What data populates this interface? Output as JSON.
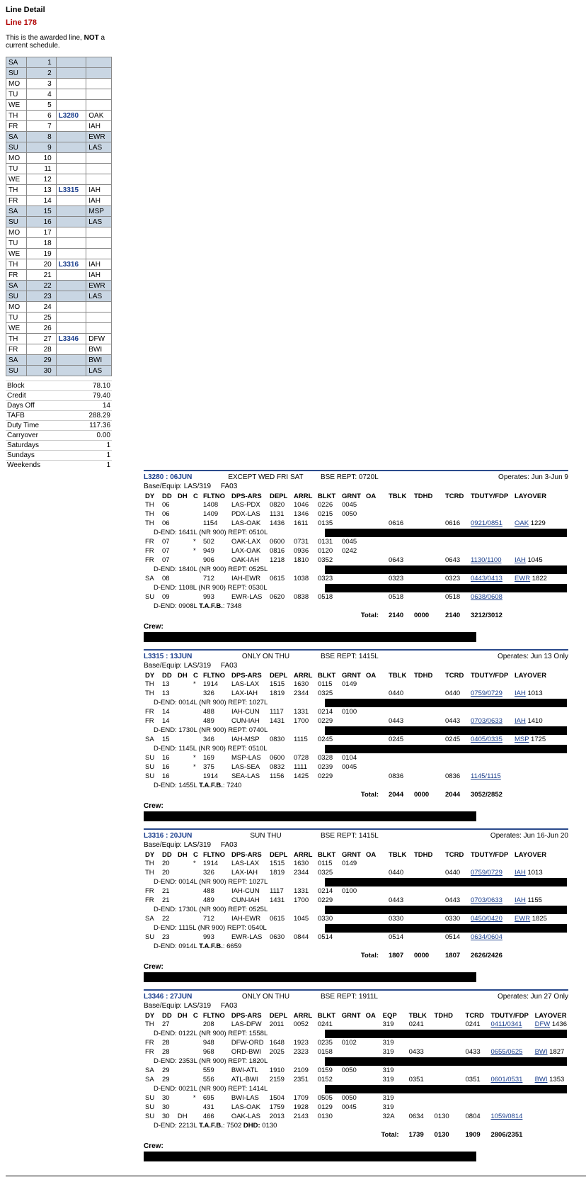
{
  "leftPanel": {
    "heading": "Line Detail",
    "lineNumber": "Line 178",
    "note": "This is the awarded line, NOT a current schedule.",
    "calendar": [
      {
        "dy": "SA",
        "n": "1",
        "ln": "",
        "arpt": "",
        "wk": true
      },
      {
        "dy": "SU",
        "n": "2",
        "ln": "",
        "arpt": "",
        "wk": true
      },
      {
        "dy": "MO",
        "n": "3",
        "ln": "",
        "arpt": ""
      },
      {
        "dy": "TU",
        "n": "4",
        "ln": "",
        "arpt": ""
      },
      {
        "dy": "WE",
        "n": "5",
        "ln": "",
        "arpt": ""
      },
      {
        "dy": "TH",
        "n": "6",
        "ln": "L3280",
        "arpt": "OAK"
      },
      {
        "dy": "FR",
        "n": "7",
        "ln": "",
        "arpt": "IAH"
      },
      {
        "dy": "SA",
        "n": "8",
        "ln": "",
        "arpt": "EWR",
        "wk": true
      },
      {
        "dy": "SU",
        "n": "9",
        "ln": "",
        "arpt": "LAS",
        "wk": true
      },
      {
        "dy": "MO",
        "n": "10",
        "ln": "",
        "arpt": ""
      },
      {
        "dy": "TU",
        "n": "11",
        "ln": "",
        "arpt": ""
      },
      {
        "dy": "WE",
        "n": "12",
        "ln": "",
        "arpt": ""
      },
      {
        "dy": "TH",
        "n": "13",
        "ln": "L3315",
        "arpt": "IAH"
      },
      {
        "dy": "FR",
        "n": "14",
        "ln": "",
        "arpt": "IAH"
      },
      {
        "dy": "SA",
        "n": "15",
        "ln": "",
        "arpt": "MSP",
        "wk": true
      },
      {
        "dy": "SU",
        "n": "16",
        "ln": "",
        "arpt": "LAS",
        "wk": true
      },
      {
        "dy": "MO",
        "n": "17",
        "ln": "",
        "arpt": ""
      },
      {
        "dy": "TU",
        "n": "18",
        "ln": "",
        "arpt": ""
      },
      {
        "dy": "WE",
        "n": "19",
        "ln": "",
        "arpt": ""
      },
      {
        "dy": "TH",
        "n": "20",
        "ln": "L3316",
        "arpt": "IAH"
      },
      {
        "dy": "FR",
        "n": "21",
        "ln": "",
        "arpt": "IAH"
      },
      {
        "dy": "SA",
        "n": "22",
        "ln": "",
        "arpt": "EWR",
        "wk": true
      },
      {
        "dy": "SU",
        "n": "23",
        "ln": "",
        "arpt": "LAS",
        "wk": true
      },
      {
        "dy": "MO",
        "n": "24",
        "ln": "",
        "arpt": ""
      },
      {
        "dy": "TU",
        "n": "25",
        "ln": "",
        "arpt": ""
      },
      {
        "dy": "WE",
        "n": "26",
        "ln": "",
        "arpt": ""
      },
      {
        "dy": "TH",
        "n": "27",
        "ln": "L3346",
        "arpt": "DFW"
      },
      {
        "dy": "FR",
        "n": "28",
        "ln": "",
        "arpt": "BWI"
      },
      {
        "dy": "SA",
        "n": "29",
        "ln": "",
        "arpt": "BWI",
        "wk": true
      },
      {
        "dy": "SU",
        "n": "30",
        "ln": "",
        "arpt": "LAS",
        "wk": true
      }
    ],
    "stats": [
      {
        "k": "Block",
        "v": "78.10"
      },
      {
        "k": "Credit",
        "v": "79.40"
      },
      {
        "k": "Days Off",
        "v": "14"
      },
      {
        "k": "TAFB",
        "v": "288.29"
      },
      {
        "k": "Duty Time",
        "v": "117.36"
      },
      {
        "k": "Carryover",
        "v": "0.00"
      },
      {
        "k": "Saturdays",
        "v": "1"
      },
      {
        "k": "Sundays",
        "v": "1"
      },
      {
        "k": "Weekends",
        "v": "1"
      }
    ]
  },
  "colHeaders": {
    "dy": "DY",
    "dd": "DD",
    "dh": "DH",
    "c": "C",
    "flt": "FLTNO",
    "da": "DPS-ARS",
    "dep": "DEPL",
    "arr": "ARRL",
    "blkt": "BLKT",
    "grnt": "GRNT",
    "oa": "OA",
    "eqp": "EQP",
    "tblk": "TBLK",
    "tdhd": "TDHD",
    "tcrd": "TCRD",
    "tduty": "TDUTY/FDP",
    "lay": "LAYOVER"
  },
  "labels": {
    "crew": "Crew:",
    "total": "Total:",
    "baseEquip": "Base/Equip: LAS/319",
    "fa": "FA03"
  },
  "pairings": [
    {
      "id": "L3280 : 06JUN",
      "op": "EXCEPT WED FRI SAT",
      "bse": "BSE REPT: 0720L",
      "dates": "Operates: Jun 3-Jun 9",
      "hasEqp": false,
      "rows": [
        {
          "t": "leg",
          "dy": "TH",
          "dd": "06",
          "c": "",
          "flt": "1408",
          "da": "LAS-PDX",
          "dep": "0820",
          "arr": "1046",
          "blkt": "0226",
          "grnt": "0045"
        },
        {
          "t": "leg",
          "dy": "TH",
          "dd": "06",
          "c": "",
          "flt": "1409",
          "da": "PDX-LAS",
          "dep": "1131",
          "arr": "1346",
          "blkt": "0215",
          "grnt": "0050"
        },
        {
          "t": "leg",
          "dy": "TH",
          "dd": "06",
          "c": "",
          "flt": "1154",
          "da": "LAS-OAK",
          "dep": "1436",
          "arr": "1611",
          "blkt": "0135",
          "tblk": "0616",
          "tcrd": "0616",
          "tduty": "0921/0851",
          "layA": "OAK",
          "layT": "1229"
        },
        {
          "t": "dend",
          "txt": "D-END: 1641L (NR 900) REPT: 0510L",
          "bar": true
        },
        {
          "t": "leg",
          "dy": "FR",
          "dd": "07",
          "c": "*",
          "flt": "502",
          "da": "OAK-LAX",
          "dep": "0600",
          "arr": "0731",
          "blkt": "0131",
          "grnt": "0045"
        },
        {
          "t": "leg",
          "dy": "FR",
          "dd": "07",
          "c": "*",
          "flt": "949",
          "da": "LAX-OAK",
          "dep": "0816",
          "arr": "0936",
          "blkt": "0120",
          "grnt": "0242"
        },
        {
          "t": "leg",
          "dy": "FR",
          "dd": "07",
          "c": "",
          "flt": "906",
          "da": "OAK-IAH",
          "dep": "1218",
          "arr": "1810",
          "blkt": "0352",
          "tblk": "0643",
          "tcrd": "0643",
          "tduty": "1130/1100",
          "layA": "IAH",
          "layT": "1045"
        },
        {
          "t": "dend",
          "txt": "D-END: 1840L (NR 900) REPT: 0525L",
          "bar": true
        },
        {
          "t": "leg",
          "dy": "SA",
          "dd": "08",
          "c": "",
          "flt": "712",
          "da": "IAH-EWR",
          "dep": "0615",
          "arr": "1038",
          "blkt": "0323",
          "tblk": "0323",
          "tcrd": "0323",
          "tduty": "0443/0413",
          "layA": "EWR",
          "layT": "1822"
        },
        {
          "t": "dend",
          "txt": "D-END: 1108L (NR 900) REPT: 0530L",
          "bar": true
        },
        {
          "t": "leg",
          "dy": "SU",
          "dd": "09",
          "c": "",
          "flt": "993",
          "da": "EWR-LAS",
          "dep": "0620",
          "arr": "0838",
          "blkt": "0518",
          "tblk": "0518",
          "tcrd": "0518",
          "tduty": "0638/0608"
        },
        {
          "t": "dend",
          "txt": "D-END: 0908L   T.A.F.B.: 7348",
          "bold": true
        },
        {
          "t": "total",
          "tblk": "2140",
          "tdhd": "0000",
          "tcrd": "2140",
          "tduty": "3212/3012"
        }
      ]
    },
    {
      "id": "L3315 : 13JUN",
      "op": "ONLY ON THU",
      "bse": "BSE REPT: 1415L",
      "dates": "Operates: Jun 13 Only",
      "hasEqp": false,
      "rows": [
        {
          "t": "leg",
          "dy": "TH",
          "dd": "13",
          "c": "*",
          "flt": "1914",
          "da": "LAS-LAX",
          "dep": "1515",
          "arr": "1630",
          "blkt": "0115",
          "grnt": "0149"
        },
        {
          "t": "leg",
          "dy": "TH",
          "dd": "13",
          "c": "",
          "flt": "326",
          "da": "LAX-IAH",
          "dep": "1819",
          "arr": "2344",
          "blkt": "0325",
          "tblk": "0440",
          "tcrd": "0440",
          "tduty": "0759/0729",
          "layA": "IAH",
          "layT": "1013"
        },
        {
          "t": "dend",
          "txt": "D-END: 0014L (NR 900) REPT: 1027L",
          "bar": true
        },
        {
          "t": "leg",
          "dy": "FR",
          "dd": "14",
          "c": "",
          "flt": "488",
          "da": "IAH-CUN",
          "dep": "1117",
          "arr": "1331",
          "blkt": "0214",
          "grnt": "0100"
        },
        {
          "t": "leg",
          "dy": "FR",
          "dd": "14",
          "c": "",
          "flt": "489",
          "da": "CUN-IAH",
          "dep": "1431",
          "arr": "1700",
          "blkt": "0229",
          "tblk": "0443",
          "tcrd": "0443",
          "tduty": "0703/0633",
          "layA": "IAH",
          "layT": "1410"
        },
        {
          "t": "dend",
          "txt": "D-END: 1730L (NR 900) REPT: 0740L",
          "bar": true
        },
        {
          "t": "leg",
          "dy": "SA",
          "dd": "15",
          "c": "",
          "flt": "346",
          "da": "IAH-MSP",
          "dep": "0830",
          "arr": "1115",
          "blkt": "0245",
          "tblk": "0245",
          "tcrd": "0245",
          "tduty": "0405/0335",
          "layA": "MSP",
          "layT": "1725"
        },
        {
          "t": "dend",
          "txt": "D-END: 1145L (NR 900) REPT: 0510L",
          "bar": true
        },
        {
          "t": "leg",
          "dy": "SU",
          "dd": "16",
          "c": "*",
          "flt": "169",
          "da": "MSP-LAS",
          "dep": "0600",
          "arr": "0728",
          "blkt": "0328",
          "grnt": "0104"
        },
        {
          "t": "leg",
          "dy": "SU",
          "dd": "16",
          "c": "*",
          "flt": "375",
          "da": "LAS-SEA",
          "dep": "0832",
          "arr": "1111",
          "blkt": "0239",
          "grnt": "0045"
        },
        {
          "t": "leg",
          "dy": "SU",
          "dd": "16",
          "c": "",
          "flt": "1914",
          "da": "SEA-LAS",
          "dep": "1156",
          "arr": "1425",
          "blkt": "0229",
          "tblk": "0836",
          "tcrd": "0836",
          "tduty": "1145/1115"
        },
        {
          "t": "dend",
          "txt": "D-END: 1455L   T.A.F.B.: 7240",
          "bold": true
        },
        {
          "t": "total",
          "tblk": "2044",
          "tdhd": "0000",
          "tcrd": "2044",
          "tduty": "3052/2852"
        }
      ]
    },
    {
      "id": "L3316 : 20JUN",
      "op": "SUN THU",
      "bse": "BSE REPT: 1415L",
      "dates": "Operates: Jun 16-Jun 20",
      "hasEqp": false,
      "rows": [
        {
          "t": "leg",
          "dy": "TH",
          "dd": "20",
          "c": "*",
          "flt": "1914",
          "da": "LAS-LAX",
          "dep": "1515",
          "arr": "1630",
          "blkt": "0115",
          "grnt": "0149"
        },
        {
          "t": "leg",
          "dy": "TH",
          "dd": "20",
          "c": "",
          "flt": "326",
          "da": "LAX-IAH",
          "dep": "1819",
          "arr": "2344",
          "blkt": "0325",
          "tblk": "0440",
          "tcrd": "0440",
          "tduty": "0759/0729",
          "layA": "IAH",
          "layT": "1013"
        },
        {
          "t": "dend",
          "txt": "D-END: 0014L (NR 900) REPT: 1027L",
          "bar": true
        },
        {
          "t": "leg",
          "dy": "FR",
          "dd": "21",
          "c": "",
          "flt": "488",
          "da": "IAH-CUN",
          "dep": "1117",
          "arr": "1331",
          "blkt": "0214",
          "grnt": "0100"
        },
        {
          "t": "leg",
          "dy": "FR",
          "dd": "21",
          "c": "",
          "flt": "489",
          "da": "CUN-IAH",
          "dep": "1431",
          "arr": "1700",
          "blkt": "0229",
          "tblk": "0443",
          "tcrd": "0443",
          "tduty": "0703/0633",
          "layA": "IAH",
          "layT": "1155"
        },
        {
          "t": "dend",
          "txt": "D-END: 1730L (NR 900) REPT: 0525L",
          "bar": true
        },
        {
          "t": "leg",
          "dy": "SA",
          "dd": "22",
          "c": "",
          "flt": "712",
          "da": "IAH-EWR",
          "dep": "0615",
          "arr": "1045",
          "blkt": "0330",
          "tblk": "0330",
          "tcrd": "0330",
          "tduty": "0450/0420",
          "layA": "EWR",
          "layT": "1825"
        },
        {
          "t": "dend",
          "txt": "D-END: 1115L (NR 900) REPT: 0540L",
          "bar": true
        },
        {
          "t": "leg",
          "dy": "SU",
          "dd": "23",
          "c": "",
          "flt": "993",
          "da": "EWR-LAS",
          "dep": "0630",
          "arr": "0844",
          "blkt": "0514",
          "tblk": "0514",
          "tcrd": "0514",
          "tduty": "0634/0604"
        },
        {
          "t": "dend",
          "txt": "D-END: 0914L   T.A.F.B.: 6659",
          "bold": true
        },
        {
          "t": "total",
          "tblk": "1807",
          "tdhd": "0000",
          "tcrd": "1807",
          "tduty": "2626/2426"
        }
      ]
    },
    {
      "id": "L3346 : 27JUN",
      "op": "ONLY ON THU",
      "bse": "BSE REPT: 1911L",
      "dates": "Operates: Jun 27 Only",
      "hasEqp": true,
      "rows": [
        {
          "t": "leg",
          "dy": "TH",
          "dd": "27",
          "c": "",
          "flt": "208",
          "da": "LAS-DFW",
          "dep": "2011",
          "arr": "0052",
          "blkt": "0241",
          "eqp": "319",
          "tblk": "0241",
          "tcrd": "0241",
          "tduty": "0411/0341",
          "layA": "DFW",
          "layT": "1436"
        },
        {
          "t": "dend",
          "txt": "D-END: 0122L (NR 900) REPT: 1558L",
          "bar": true
        },
        {
          "t": "leg",
          "dy": "FR",
          "dd": "28",
          "c": "",
          "flt": "948",
          "da": "DFW-ORD",
          "dep": "1648",
          "arr": "1923",
          "blkt": "0235",
          "grnt": "0102",
          "eqp": "319"
        },
        {
          "t": "leg",
          "dy": "FR",
          "dd": "28",
          "c": "",
          "flt": "968",
          "da": "ORD-BWI",
          "dep": "2025",
          "arr": "2323",
          "blkt": "0158",
          "eqp": "319",
          "tblk": "0433",
          "tcrd": "0433",
          "tduty": "0655/0625",
          "layA": "BWI",
          "layT": "1827"
        },
        {
          "t": "dend",
          "txt": "D-END: 2353L (NR 900) REPT: 1820L",
          "bar": true
        },
        {
          "t": "leg",
          "dy": "SA",
          "dd": "29",
          "c": "",
          "flt": "559",
          "da": "BWI-ATL",
          "dep": "1910",
          "arr": "2109",
          "blkt": "0159",
          "grnt": "0050",
          "eqp": "319"
        },
        {
          "t": "leg",
          "dy": "SA",
          "dd": "29",
          "c": "",
          "flt": "556",
          "da": "ATL-BWI",
          "dep": "2159",
          "arr": "2351",
          "blkt": "0152",
          "eqp": "319",
          "tblk": "0351",
          "tcrd": "0351",
          "tduty": "0601/0531",
          "layA": "BWI",
          "layT": "1353"
        },
        {
          "t": "dend",
          "txt": "D-END: 0021L (NR 900) REPT: 1414L",
          "bar": true
        },
        {
          "t": "leg",
          "dy": "SU",
          "dd": "30",
          "c": "*",
          "flt": "695",
          "da": "BWI-LAS",
          "dep": "1504",
          "arr": "1709",
          "blkt": "0505",
          "grnt": "0050",
          "eqp": "319"
        },
        {
          "t": "leg",
          "dy": "SU",
          "dd": "30",
          "c": "",
          "flt": "431",
          "da": "LAS-OAK",
          "dep": "1759",
          "arr": "1928",
          "blkt": "0129",
          "grnt": "0045",
          "eqp": "319"
        },
        {
          "t": "leg",
          "dy": "SU",
          "dd": "30",
          "dh": "DH",
          "c": "",
          "flt": "466",
          "da": "OAK-LAS",
          "dep": "2013",
          "arr": "2143",
          "blkt": "0130",
          "eqp": "32A",
          "tblk": "0634",
          "tdhd": "0130",
          "tcrd": "0804",
          "tduty": "1059/0814"
        },
        {
          "t": "dend",
          "txt": "D-END: 2213L   T.A.F.B.: 7502   DHD: 0130",
          "bold": true
        },
        {
          "t": "total",
          "tblk": "1739",
          "tdhd": "0130",
          "tcrd": "1909",
          "tduty": "2806/2351"
        }
      ]
    }
  ]
}
